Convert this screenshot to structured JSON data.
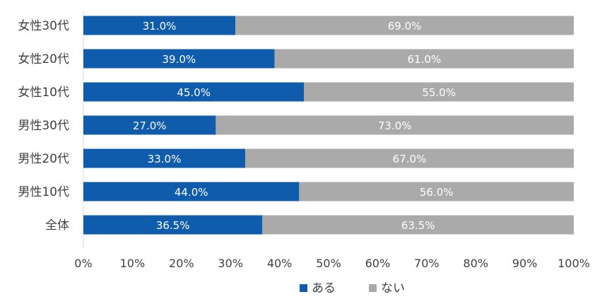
{
  "chart_data": {
    "type": "bar",
    "orientation": "horizontal",
    "stacked": true,
    "percent": true,
    "categories": [
      "女性30代",
      "女性20代",
      "女性10代",
      "男性30代",
      "男性20代",
      "男性10代",
      "全体"
    ],
    "series": [
      {
        "name": "ある",
        "color": "#0f5cad",
        "values": [
          31.0,
          39.0,
          45.0,
          27.0,
          33.0,
          44.0,
          36.5
        ]
      },
      {
        "name": "ない",
        "color": "#aaaaaa",
        "values": [
          69.0,
          61.0,
          55.0,
          73.0,
          67.0,
          56.0,
          63.5
        ]
      }
    ],
    "data_labels": {
      "ある": [
        "31.0%",
        "39.0%",
        "45.0%",
        "27.0%",
        "33.0%",
        "44.0%",
        "36.5%"
      ],
      "ない": [
        "69.0%",
        "61.0%",
        "55.0%",
        "73.0%",
        "67.0%",
        "56.0%",
        "63.5%"
      ]
    },
    "xlim": [
      0,
      100
    ],
    "x_ticks": [
      "0%",
      "10%",
      "20%",
      "30%",
      "40%",
      "50%",
      "60%",
      "70%",
      "80%",
      "90%",
      "100%"
    ],
    "grid": false,
    "legend_position": "bottom"
  }
}
